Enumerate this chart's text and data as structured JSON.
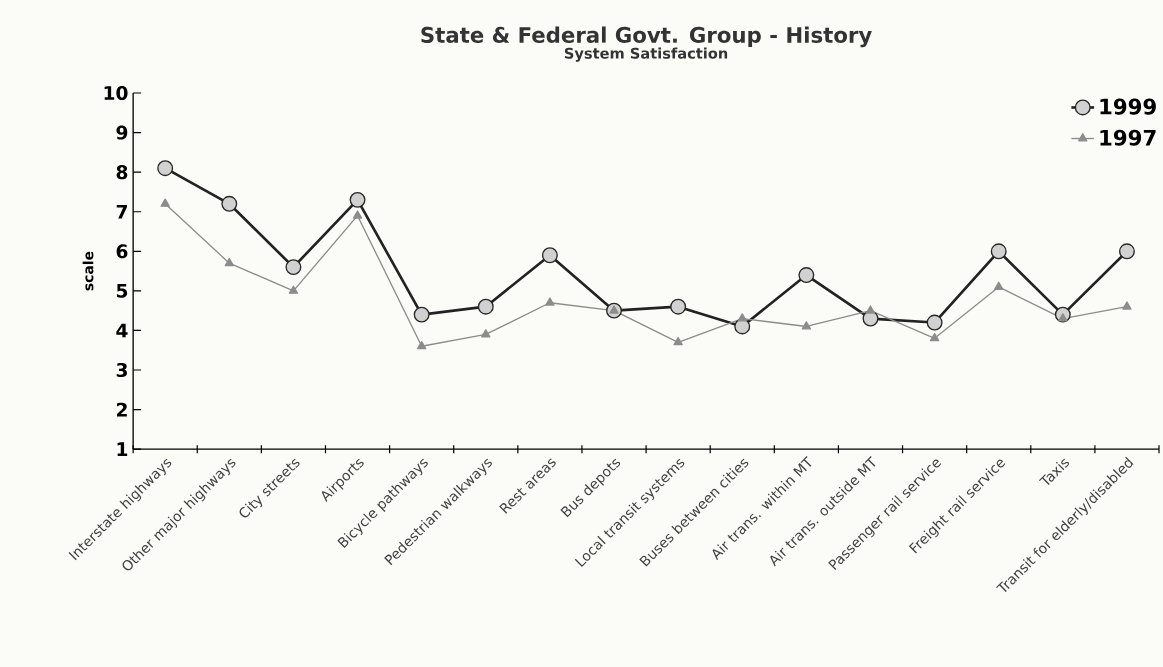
{
  "chart_data": {
    "type": "line",
    "title": "State & Federal Govt. Group - History",
    "subtitle": "System Satisfaction",
    "ylabel": "scale",
    "categories": [
      "Interstate highways",
      "Other major highways",
      "City streets",
      "Airports",
      "Bicycle pathways",
      "Pedestrian walkways",
      "Rest areas",
      "Bus depots",
      "Local transit systems",
      "Buses between cities",
      "Air trans. within MT",
      "Air trans. outside MT",
      "Passenger rail service",
      "Freight rail service",
      "Taxis",
      "Transit for elderly/disabled"
    ],
    "series": [
      {
        "name": "1999",
        "color": "#222222",
        "marker": "circle",
        "values": [
          8.1,
          7.2,
          5.6,
          7.3,
          4.4,
          4.6,
          5.9,
          4.5,
          4.6,
          4.1,
          5.4,
          4.3,
          4.2,
          6.0,
          4.4,
          6.0
        ]
      },
      {
        "name": "1997",
        "color": "#8c8c8c",
        "marker": "triangle",
        "values": [
          7.2,
          5.7,
          5.0,
          6.9,
          3.6,
          3.9,
          4.7,
          4.5,
          3.7,
          4.3,
          4.1,
          4.5,
          3.8,
          5.1,
          4.3,
          4.6
        ]
      }
    ],
    "ylim": [
      1,
      10
    ],
    "yticks": [
      1,
      2,
      3,
      4,
      5,
      6,
      7,
      8,
      9,
      10
    ],
    "grid": false,
    "legend": "top right"
  }
}
